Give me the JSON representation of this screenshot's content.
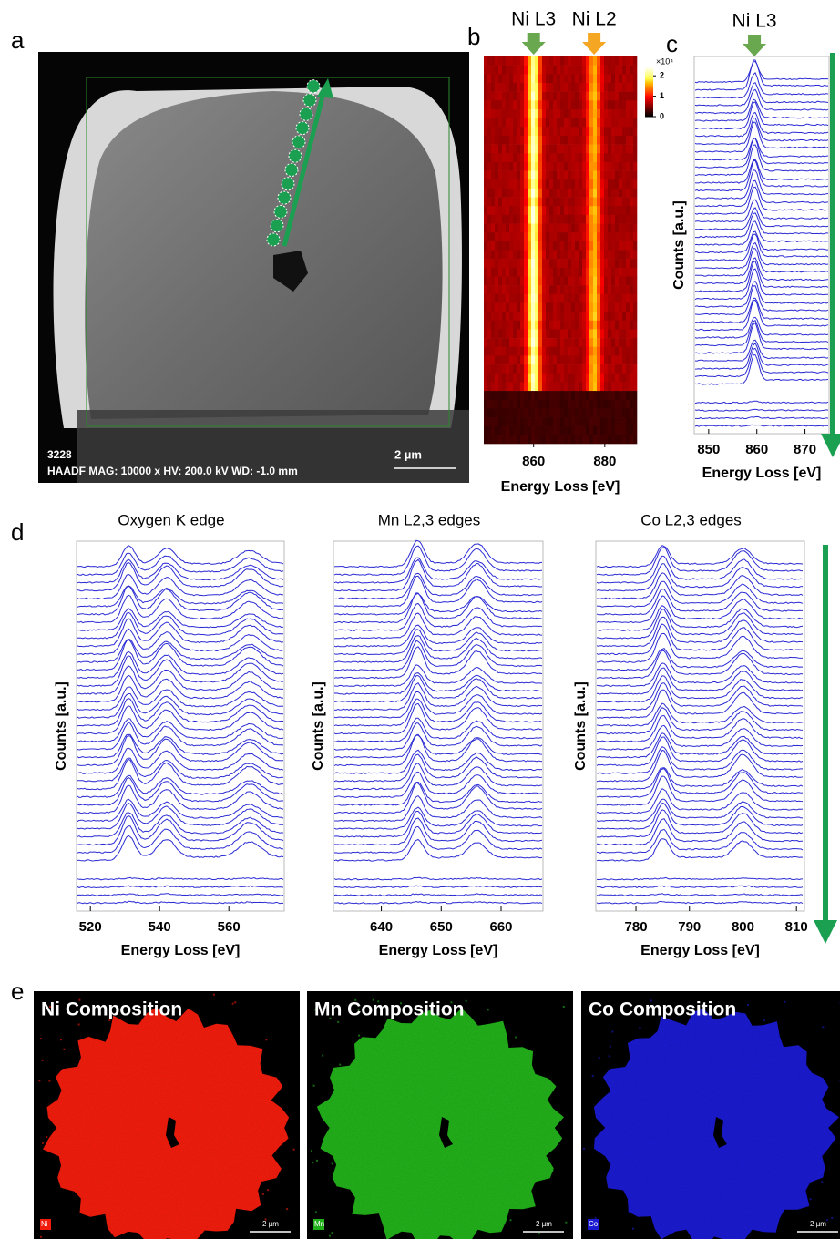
{
  "a": {
    "label": "a",
    "info_id": "3228",
    "info": "HAADF   MAG: 10000 x  HV: 200.0 kV  WD: -1.0 mm",
    "scale_bar": "2 µm",
    "arrow_color": "#1aa050"
  },
  "b": {
    "label": "b",
    "type": "heatmap",
    "colormap": "hot",
    "markers": [
      {
        "text": "Ni L3",
        "color": "#6aa84f"
      },
      {
        "text": "Ni L2",
        "color": "#f5a623"
      }
    ],
    "peaks": [
      860,
      877
    ],
    "xlim": [
      846,
      889
    ],
    "xticks": [
      860,
      880
    ],
    "xlabel": "Energy Loss [eV]",
    "colorbar": {
      "multiplier": "×10⁴",
      "clim": [
        0,
        2.5
      ],
      "ticks": [
        2,
        1,
        0
      ]
    }
  },
  "c": {
    "label": "c",
    "type": "stacked-line",
    "marker": {
      "text": "Ni L3",
      "color": "#6aa84f"
    },
    "peaks": [
      859.5
    ],
    "xlim": [
      847,
      875
    ],
    "xticks": [
      850,
      860,
      870
    ],
    "xlabel": "Energy Loss [eV]",
    "ylabel": "Counts [a.u.]",
    "line_color": "#2b2bd4",
    "arrow_color": "#1aa050"
  },
  "d": {
    "label": "d",
    "line_color": "#2b2bd4",
    "arrow_color": "#1aa050",
    "panels": [
      {
        "title": "Oxygen K edge",
        "peaks": [
          531,
          542,
          566
        ],
        "xlim": [
          516,
          576
        ],
        "xticks": [
          520,
          540,
          560
        ],
        "xlabel": "Energy Loss [eV]",
        "ylabel": "Counts [a.u.]"
      },
      {
        "title": "Mn L2,3 edges",
        "peaks": [
          646,
          656
        ],
        "xlim": [
          632,
          667
        ],
        "xticks": [
          640,
          650,
          660
        ],
        "xlabel": "Energy Loss [eV]",
        "ylabel": "Counts [a.u.]"
      },
      {
        "title": "Co L2,3 edges",
        "peaks": [
          785,
          800
        ],
        "xlim": [
          772.5,
          811.5
        ],
        "xticks": [
          780,
          790,
          800,
          810
        ],
        "xlabel": "Energy Loss [eV]",
        "ylabel": "Counts [a.u.]"
      }
    ]
  },
  "e": {
    "label": "e",
    "maps": [
      {
        "title": "Ni Composition",
        "element": "Ni",
        "color": "#f21c0c",
        "scale_bar": "2 µm"
      },
      {
        "title": "Mn Composition",
        "element": "Mn",
        "color": "#22b01a",
        "scale_bar": "2 µm"
      },
      {
        "title": "Co Composition",
        "element": "Co",
        "color": "#1a1ad0",
        "scale_bar": "2 µm"
      }
    ]
  }
}
